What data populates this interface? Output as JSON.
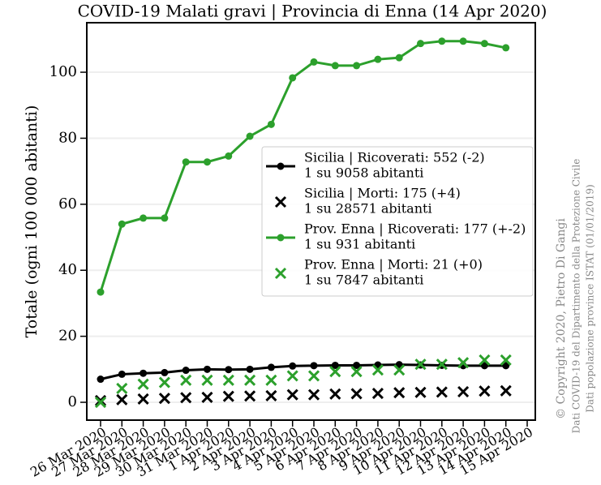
{
  "chart_data": {
    "type": "line",
    "title": "COVID-19 Malati gravi | Provincia di Enna (14 Apr 2020)",
    "y_label": "Totale (ogni 100 000 abitanti)",
    "categories": [
      "26 Mar 2020",
      "27 Mar 2020",
      "28 Mar 2020",
      "29 Mar 2020",
      "30 Mar 2020",
      "31 Mar 2020",
      "1 Apr 2020",
      "2 Apr 2020",
      "3 Apr 2020",
      "4 Apr 2020",
      "5 Apr 2020",
      "6 Apr 2020",
      "7 Apr 2020",
      "8 Apr 2020",
      "9 Apr 2020",
      "10 Apr 2020",
      "11 Apr 2020",
      "12 Apr 2020",
      "13 Apr 2020",
      "14 Apr 2020",
      "15 Apr 2020"
    ],
    "series": [
      {
        "name": "Sicilia | Ricoverati: 552 (-2)",
        "note": "1 su 9058 abitanti",
        "color": "#000000",
        "marker": "line",
        "values": [
          7,
          8.5,
          8.8,
          9,
          9.7,
          10,
          9.9,
          10,
          10.6,
          11,
          11.1,
          11.2,
          11.2,
          11.3,
          11.4,
          11.3,
          11.2,
          11.1,
          11.1,
          11.1,
          null
        ]
      },
      {
        "name": "Sicilia | Morti: 175 (+4)",
        "note": "1 su 28571 abitanti",
        "color": "#000000",
        "marker": "x",
        "values": [
          0.5,
          0.8,
          1,
          1.2,
          1.4,
          1.5,
          1.8,
          1.9,
          2,
          2.3,
          2.3,
          2.5,
          2.6,
          2.7,
          2.9,
          3,
          3.1,
          3.2,
          3.4,
          3.5,
          null
        ]
      },
      {
        "name": "Prov. Enna | Ricoverati: 177 (+-2)",
        "note": "1 su 931 abitanti",
        "color": "#2ca02c",
        "marker": "line",
        "values": [
          33.4,
          54,
          55.8,
          55.8,
          72.8,
          72.8,
          74.6,
          80.6,
          84.2,
          98.3,
          103.1,
          102,
          102,
          103.9,
          104.4,
          108.7,
          109.4,
          109.4,
          108.7,
          107.4,
          null
        ]
      },
      {
        "name": "Prov. Enna | Morti: 21 (+0)",
        "note": "1 su 7847 abitanti",
        "color": "#2ca02c",
        "marker": "x",
        "values": [
          0,
          4.2,
          5.5,
          6,
          6.7,
          6.7,
          6.7,
          6.7,
          6.7,
          8,
          8,
          9.3,
          9.3,
          9.8,
          9.8,
          11.5,
          11.5,
          12,
          12.8,
          12.8,
          null
        ]
      }
    ],
    "ylim": [
      -5.4,
      115
    ],
    "yticks": [
      0,
      20,
      40,
      60,
      80,
      100
    ],
    "grid": true,
    "credits": [
      "© Copyright 2020, Pietro Di Gangi",
      "Dati COVID-19 del Dipartimento della Protezione Civile",
      "Dati popolazione province ISTAT (01/01/2019)"
    ]
  }
}
